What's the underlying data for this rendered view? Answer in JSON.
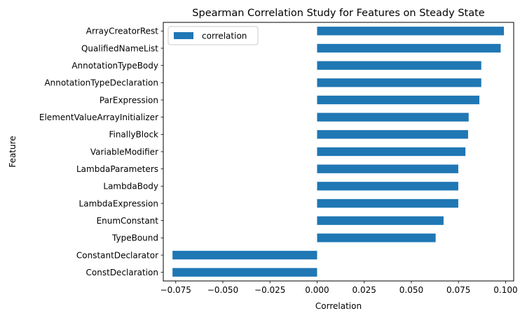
{
  "chart_data": {
    "type": "bar",
    "orientation": "horizontal",
    "title": "Spearman Correlation Study for Features on Steady State",
    "xlabel": "Correlation",
    "ylabel": "Feature",
    "xlim": [
      -0.0816,
      0.1043
    ],
    "xticks": [
      -0.075,
      -0.05,
      -0.025,
      0.0,
      0.025,
      0.05,
      0.075,
      0.1
    ],
    "xtick_labels": [
      "−0.075",
      "−0.050",
      "−0.025",
      "0.000",
      "0.025",
      "0.050",
      "0.075",
      "0.100"
    ],
    "grid": false,
    "legend_position": "top-left",
    "colors": {
      "bar": "#1f77b4",
      "axis": "#000000",
      "background": "#ffffff",
      "legend_border": "#cccccc"
    },
    "categories": [
      "ArrayCreatorRest",
      "QualifiedNameList",
      "AnnotationTypeBody",
      "AnnotationTypeDeclaration",
      "ParExpression",
      "ElementValueArrayInitializer",
      "FinallyBlock",
      "VariableModifier",
      "LambdaParameters",
      "LambdaBody",
      "LambdaExpression",
      "EnumConstant",
      "TypeBound",
      "ConstantDeclarator",
      "ConstDeclaration"
    ],
    "series": [
      {
        "name": "correlation",
        "values": [
          0.0991,
          0.0974,
          0.0871,
          0.0871,
          0.0861,
          0.0804,
          0.0801,
          0.0787,
          0.0749,
          0.0749,
          0.0749,
          0.0671,
          0.0629,
          -0.0767,
          -0.0767
        ]
      }
    ]
  }
}
